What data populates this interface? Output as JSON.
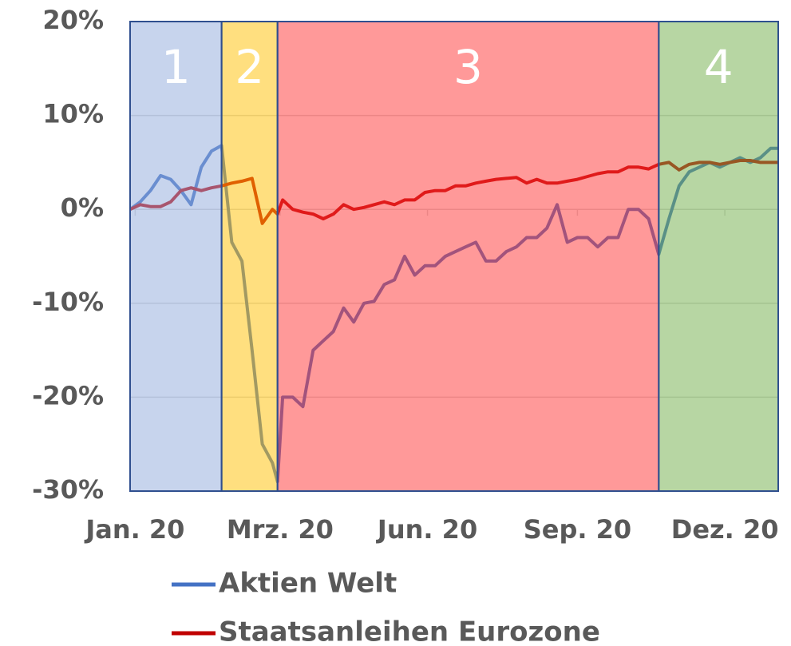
{
  "chart_data": {
    "type": "line",
    "x": [
      0,
      4,
      8,
      12,
      16,
      20,
      24,
      28,
      32,
      36,
      40,
      44,
      48,
      52,
      56,
      58,
      60,
      64,
      68,
      72,
      76,
      80,
      84,
      88,
      92,
      96,
      100,
      104,
      108,
      112,
      116,
      120,
      124,
      128,
      132,
      136,
      140,
      144,
      148,
      152,
      156,
      160,
      164,
      168,
      172,
      176,
      180,
      184,
      188,
      192,
      196,
      200,
      204,
      208,
      212,
      216,
      220,
      224,
      228,
      232,
      236,
      240,
      244,
      248,
      252,
      255
    ],
    "series": [
      {
        "name": "Aktien Welt",
        "color": "#4472c4",
        "values": [
          0,
          0.8,
          2.0,
          3.6,
          3.2,
          2.0,
          0.5,
          4.5,
          6.2,
          6.8,
          -3.5,
          -5.5,
          -15,
          -25,
          -27,
          -29,
          -20,
          -20,
          -21,
          -15,
          -14,
          -13,
          -10.5,
          -12,
          -10,
          -9.8,
          -8,
          -7.5,
          -5,
          -7,
          -6,
          -6,
          -5,
          -4.5,
          -4,
          -3.5,
          -5.5,
          -5.5,
          -4.5,
          -4,
          -3,
          -3,
          -2,
          0.5,
          -3.5,
          -3,
          -3,
          -4,
          -3,
          -3,
          0,
          0,
          -1,
          -4.8,
          -1,
          2.5,
          4,
          4.5,
          5,
          4.5,
          5,
          5.5,
          5,
          5.5,
          6.5,
          6.5
        ]
      },
      {
        "name": "Staatsanleihen Eurozone",
        "color": "#c00000",
        "values": [
          0,
          0.5,
          0.3,
          0.3,
          0.8,
          2.0,
          2.3,
          2.0,
          2.3,
          2.5,
          2.8,
          3.0,
          3.3,
          -1.5,
          0,
          -0.5,
          1,
          0,
          -0.3,
          -0.5,
          -1,
          -0.5,
          0.5,
          0,
          0.2,
          0.5,
          0.8,
          0.5,
          1,
          1,
          1.8,
          2,
          2,
          2.5,
          2.5,
          2.8,
          3,
          3.2,
          3.3,
          3.4,
          2.8,
          3.2,
          2.8,
          2.8,
          3,
          3.2,
          3.5,
          3.8,
          4,
          4,
          4.5,
          4.5,
          4.3,
          4.8,
          5,
          4.2,
          4.8,
          5,
          5,
          4.8,
          5,
          5.2,
          5.2,
          5,
          5,
          5
        ]
      }
    ],
    "regions": [
      {
        "label": "1",
        "start": 0,
        "end": 36,
        "color": "#8faadc"
      },
      {
        "label": "2",
        "start": 36,
        "end": 58,
        "color": "#ffc000"
      },
      {
        "label": "3",
        "start": 58,
        "end": 208,
        "color": "#ff3333"
      },
      {
        "label": "4",
        "start": 208,
        "end": 255,
        "color": "#70ad47"
      }
    ],
    "xlim": [
      0,
      255
    ],
    "xticks": [
      {
        "value": 2,
        "label": "Jan. 20"
      },
      {
        "value": 59,
        "label": "Mrz. 20"
      },
      {
        "value": 117,
        "label": "Jun. 20"
      },
      {
        "value": 176,
        "label": "Sep. 20"
      },
      {
        "value": 234,
        "label": "Dez. 20"
      }
    ],
    "ylim": [
      -30,
      20
    ],
    "yticks": [
      {
        "value": -30,
        "label": "-30%"
      },
      {
        "value": -20,
        "label": "-20%"
      },
      {
        "value": -10,
        "label": "-10%"
      },
      {
        "value": 0,
        "label": "0%"
      },
      {
        "value": 10,
        "label": "10%"
      },
      {
        "value": 20,
        "label": "20%"
      }
    ],
    "grid": true
  }
}
